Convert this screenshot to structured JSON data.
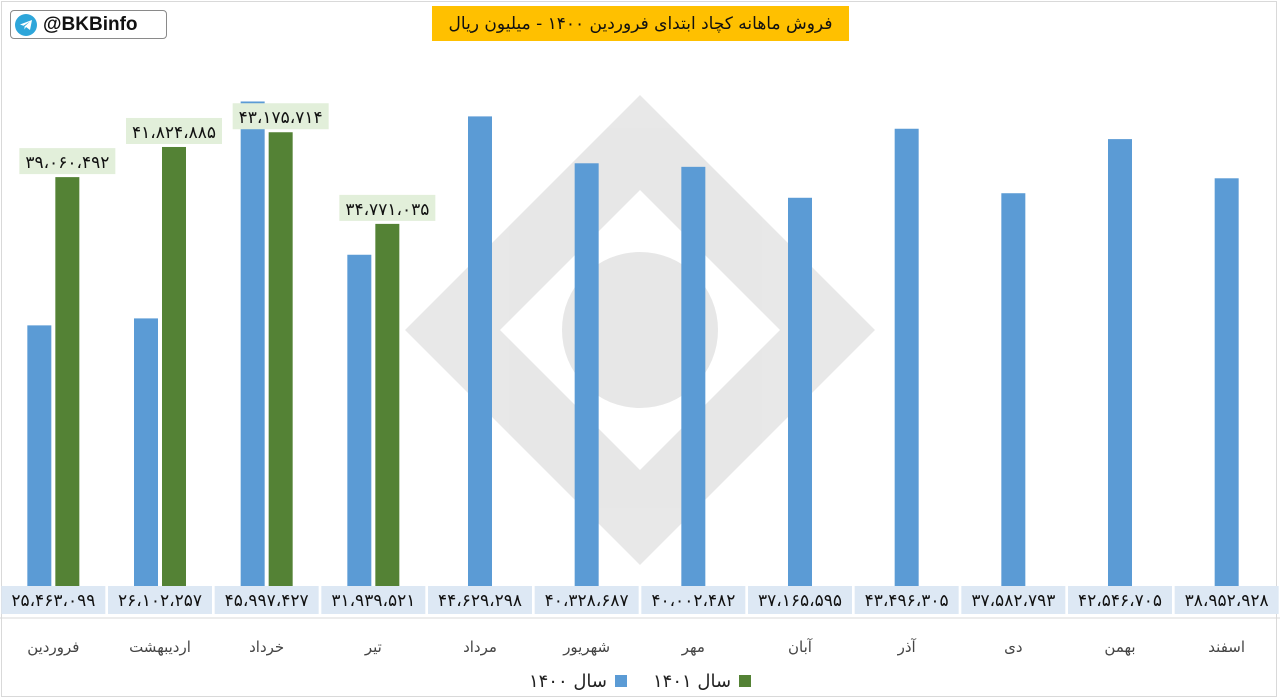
{
  "watermark": {
    "handle": "@BKBinfo",
    "icon": "telegram-icon"
  },
  "colors": {
    "series_1400": "#5b9bd5",
    "series_1401": "#548235",
    "title_bg": "#ffc000",
    "label_bg": "#e2efda",
    "axis_label_bg": "#dde8f4"
  },
  "chart_data": {
    "type": "bar",
    "title": "فروش ماهانه کچاد ابتدای فروردین ۱۴۰۰ - میلیون ریال",
    "categories": [
      "فروردین",
      "اردیبهشت",
      "خرداد",
      "تیر",
      "مرداد",
      "شهریور",
      "مهر",
      "آبان",
      "آذر",
      "دی",
      "بهمن",
      "اسفند"
    ],
    "series": [
      {
        "name": "سال ۱۴۰۰",
        "values": [
          25463099,
          26102257,
          45997427,
          31939521,
          44629298,
          40328687,
          40002482,
          37165595,
          43496305,
          37582793,
          42546705,
          38952928
        ],
        "labels": [
          "۲۵،۴۶۳،۰۹۹",
          "۲۶،۱۰۲،۲۵۷",
          "۴۵،۹۹۷،۴۲۷",
          "۳۱،۹۳۹،۵۲۱",
          "۴۴،۶۲۹،۲۹۸",
          "۴۰،۳۲۸،۶۸۷",
          "۴۰،۰۰۲،۴۸۲",
          "۳۷،۱۶۵،۵۹۵",
          "۴۳،۴۹۶،۳۰۵",
          "۳۷،۵۸۲،۷۹۳",
          "۴۲،۵۴۶،۷۰۵",
          "۳۸،۹۵۲،۹۲۸"
        ]
      },
      {
        "name": "سال ۱۴۰۱",
        "values": [
          39060492,
          41824885,
          43175714,
          34771035,
          null,
          null,
          null,
          null,
          null,
          null,
          null,
          null
        ],
        "labels": [
          "۳۹،۰۶۰،۴۹۲",
          "۴۱،۸۲۴،۸۸۵",
          "۴۳،۱۷۵،۷۱۴",
          "۳۴،۷۷۱،۰۳۵",
          null,
          null,
          null,
          null,
          null,
          null,
          null,
          null
        ]
      }
    ],
    "ylim": [
      0,
      46500000
    ],
    "legend": "bottom-center",
    "grid": false
  }
}
